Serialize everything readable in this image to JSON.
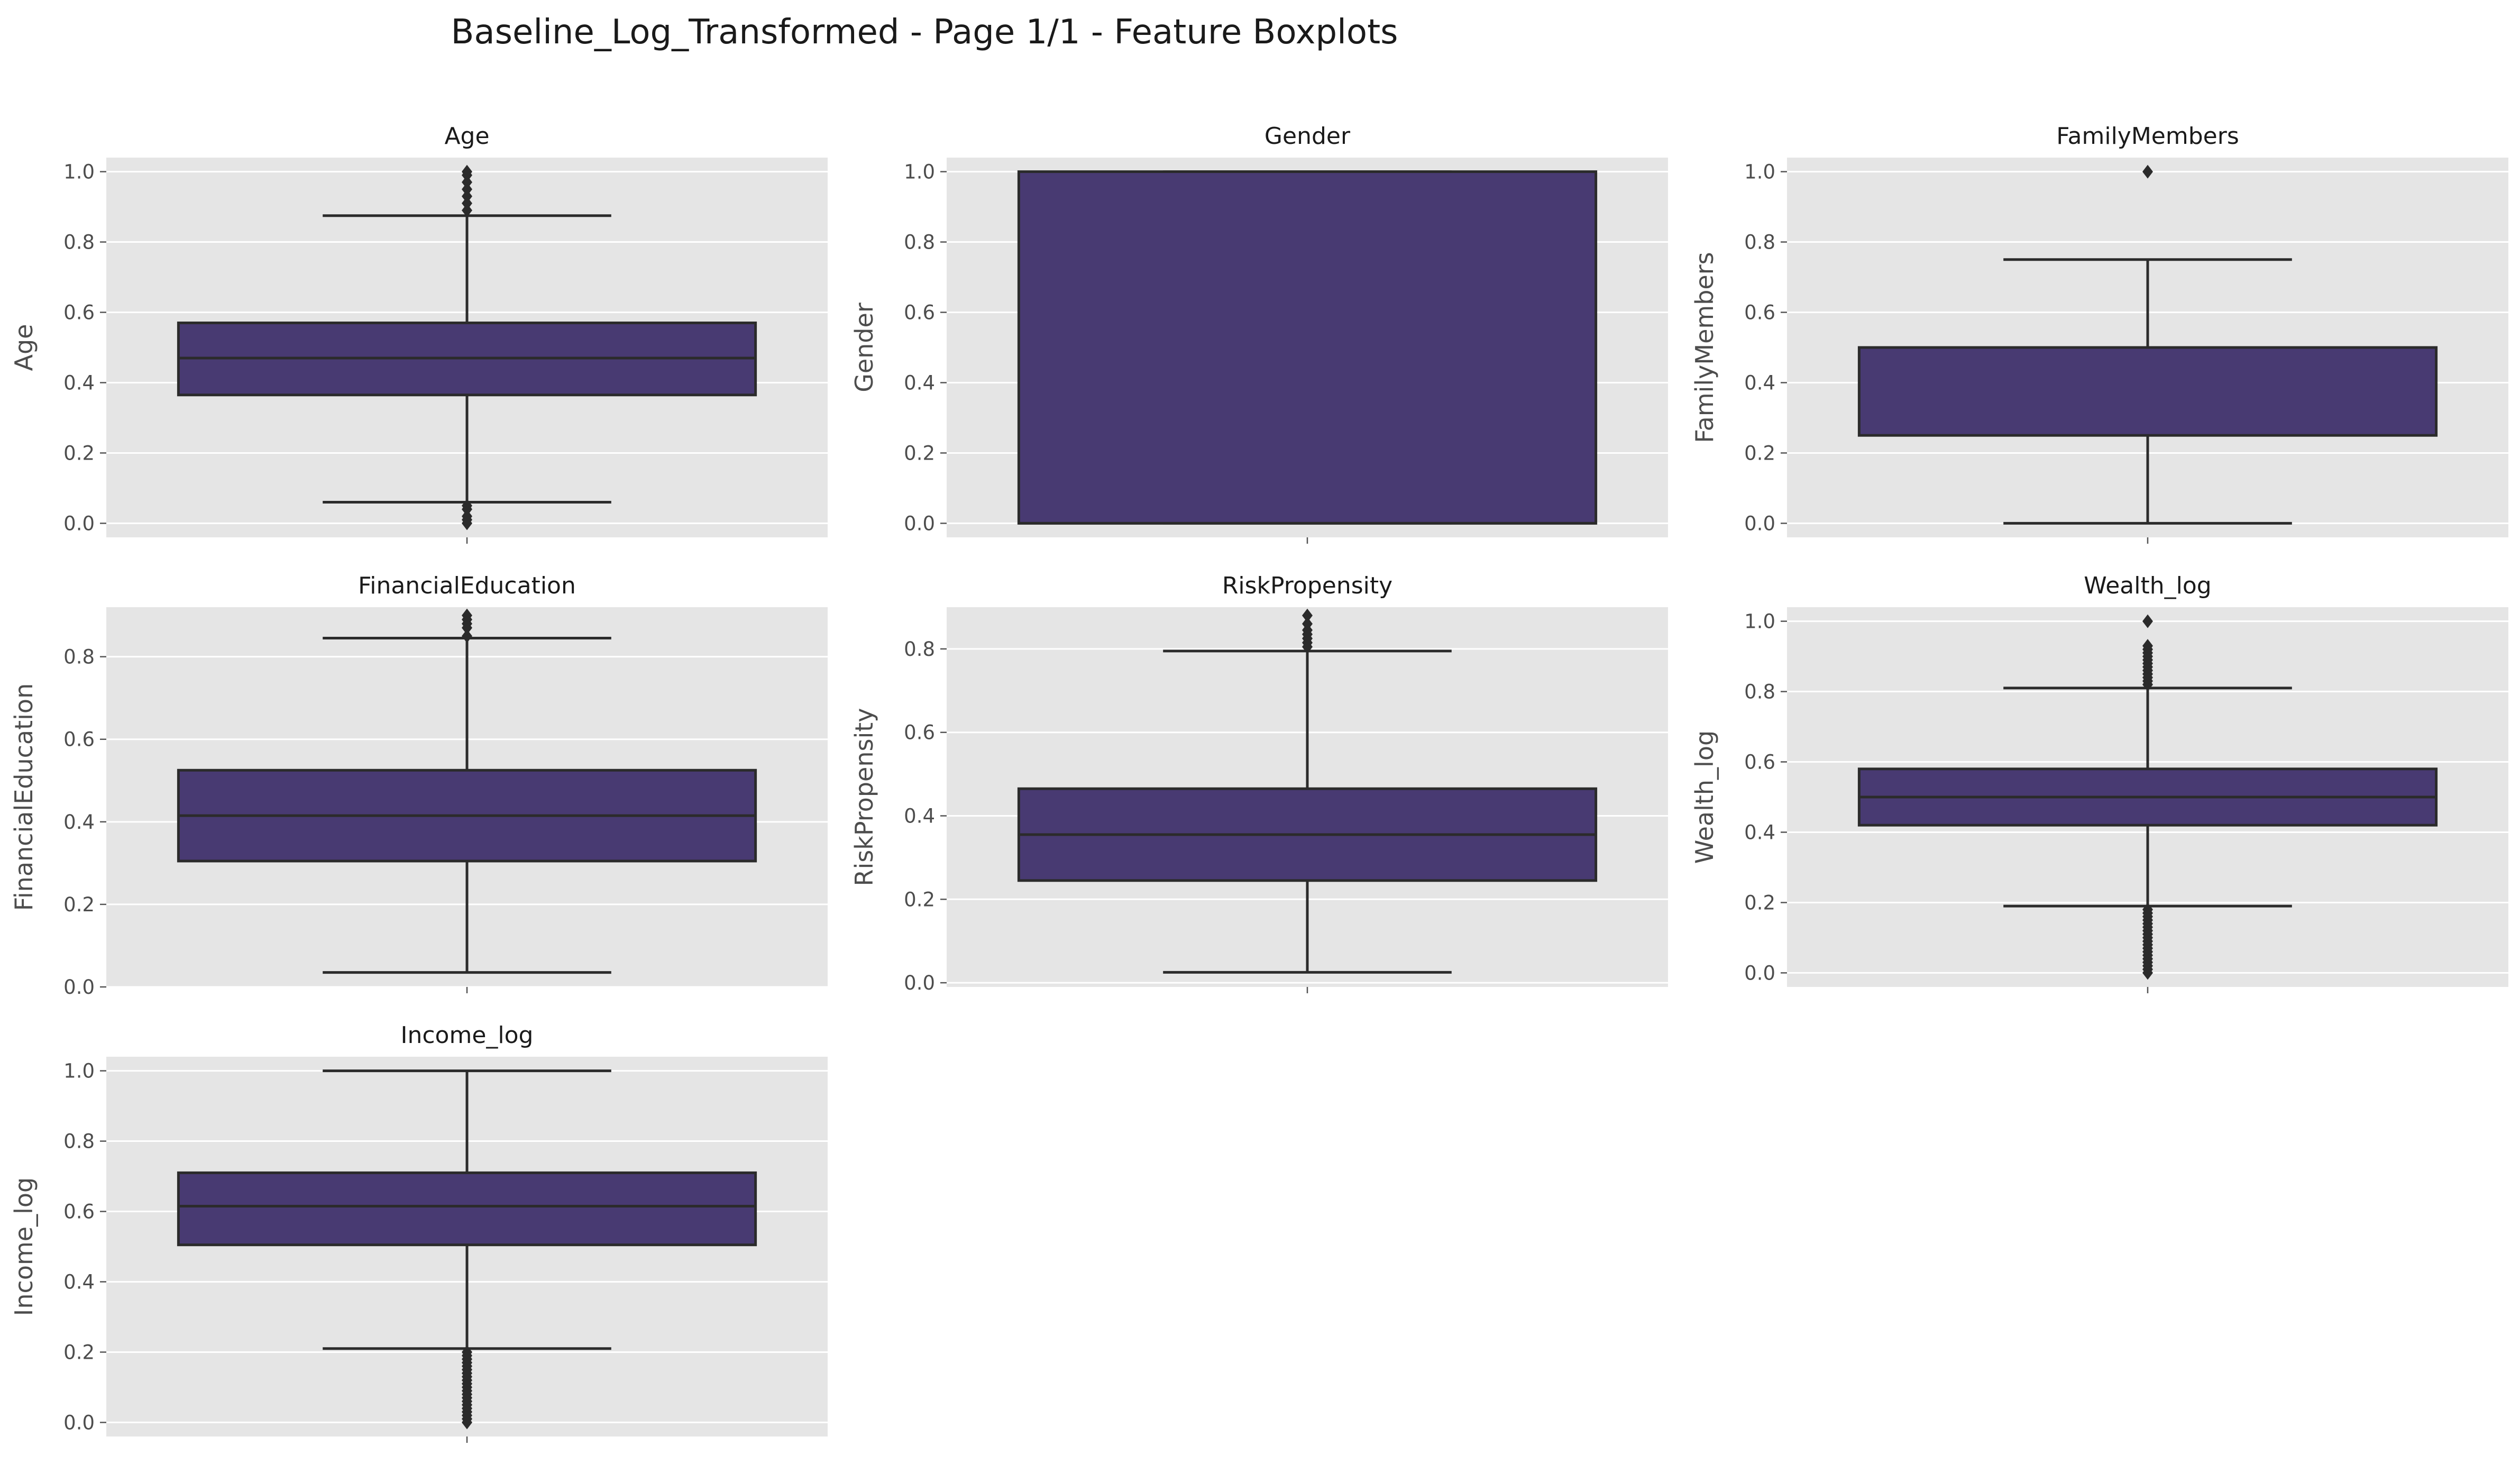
{
  "title": "Baseline_Log_Transformed - Page 1/1 - Feature Boxplots",
  "colors": {
    "panel_bg": "#e5e5e5",
    "grid": "#ffffff",
    "box_fill": "#483a72",
    "line": "#2b2b2b"
  },
  "chart_data": [
    {
      "type": "box",
      "title": "Age",
      "ylabel": "Age",
      "ylim": [
        -0.04,
        1.04
      ],
      "yticks": [
        "0.0",
        "0.2",
        "0.4",
        "0.6",
        "0.8",
        "1.0"
      ],
      "grid": true,
      "stats": {
        "whislo": 0.06,
        "q1": 0.365,
        "median": 0.47,
        "q3": 0.57,
        "whishi": 0.875
      },
      "fliers": [
        0.0,
        0.01,
        0.02,
        0.04,
        0.05,
        0.89,
        0.91,
        0.93,
        0.95,
        0.97,
        0.99,
        1.0
      ]
    },
    {
      "type": "box",
      "title": "Gender",
      "ylabel": "Gender",
      "ylim": [
        -0.04,
        1.04
      ],
      "yticks": [
        "0.0",
        "0.2",
        "0.4",
        "0.6",
        "0.8",
        "1.0"
      ],
      "grid": true,
      "stats": {
        "whislo": 0.0,
        "q1": 0.0,
        "median": 0.0,
        "q3": 1.0,
        "whishi": 1.0
      },
      "fliers": []
    },
    {
      "type": "box",
      "title": "FamilyMembers",
      "ylabel": "FamilyMembers",
      "ylim": [
        -0.04,
        1.04
      ],
      "yticks": [
        "0.0",
        "0.2",
        "0.4",
        "0.6",
        "0.8",
        "1.0"
      ],
      "grid": true,
      "stats": {
        "whislo": 0.0,
        "q1": 0.25,
        "median": 0.5,
        "q3": 0.5,
        "whishi": 0.75
      },
      "fliers": [
        1.0
      ]
    },
    {
      "type": "box",
      "title": "FinancialEducation",
      "ylabel": "FinancialEducation",
      "ylim": [
        -0.0,
        0.92
      ],
      "yticks": [
        "0.0",
        "0.2",
        "0.4",
        "0.6",
        "0.8"
      ],
      "grid": true,
      "stats": {
        "whislo": 0.035,
        "q1": 0.305,
        "median": 0.415,
        "q3": 0.525,
        "whishi": 0.845
      },
      "fliers": [
        0.85,
        0.87,
        0.88,
        0.89,
        0.9
      ]
    },
    {
      "type": "box",
      "title": "RiskPropensity",
      "ylabel": "RiskPropensity",
      "ylim": [
        -0.01,
        0.9
      ],
      "yticks": [
        "0.0",
        "0.2",
        "0.4",
        "0.6",
        "0.8"
      ],
      "grid": true,
      "stats": {
        "whislo": 0.025,
        "q1": 0.245,
        "median": 0.355,
        "q3": 0.465,
        "whishi": 0.795
      },
      "fliers": [
        0.805,
        0.815,
        0.825,
        0.835,
        0.845,
        0.86,
        0.88
      ]
    },
    {
      "type": "box",
      "title": "Wealth_log",
      "ylabel": "Wealth_log",
      "ylim": [
        -0.04,
        1.04
      ],
      "yticks": [
        "0.0",
        "0.2",
        "0.4",
        "0.6",
        "0.8",
        "1.0"
      ],
      "grid": true,
      "stats": {
        "whislo": 0.19,
        "q1": 0.42,
        "median": 0.5,
        "q3": 0.58,
        "whishi": 0.81
      },
      "fliers": [
        0.0,
        0.01,
        0.02,
        0.03,
        0.04,
        0.05,
        0.06,
        0.07,
        0.08,
        0.09,
        0.1,
        0.11,
        0.12,
        0.13,
        0.14,
        0.15,
        0.16,
        0.17,
        0.18,
        0.82,
        0.83,
        0.84,
        0.85,
        0.86,
        0.87,
        0.88,
        0.89,
        0.9,
        0.91,
        0.92,
        0.93,
        1.0
      ]
    },
    {
      "type": "box",
      "title": "Income_log",
      "ylabel": "Income_log",
      "ylim": [
        -0.04,
        1.04
      ],
      "yticks": [
        "0.0",
        "0.2",
        "0.4",
        "0.6",
        "0.8",
        "1.0"
      ],
      "grid": true,
      "stats": {
        "whislo": 0.21,
        "q1": 0.505,
        "median": 0.615,
        "q3": 0.71,
        "whishi": 1.0
      },
      "fliers": [
        0.0,
        0.01,
        0.02,
        0.03,
        0.04,
        0.05,
        0.06,
        0.07,
        0.08,
        0.09,
        0.1,
        0.11,
        0.12,
        0.13,
        0.14,
        0.15,
        0.16,
        0.17,
        0.18,
        0.19,
        0.2
      ]
    }
  ]
}
